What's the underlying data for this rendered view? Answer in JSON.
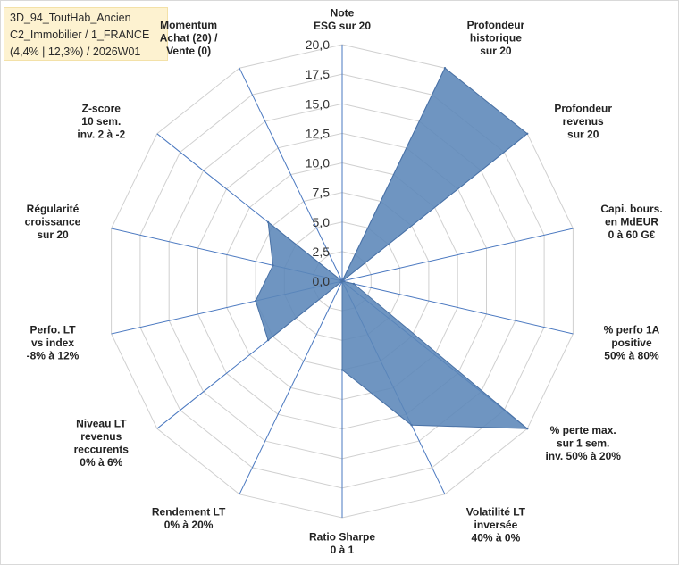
{
  "title": {
    "lines": [
      "3D_94_ToutHab_Ancien",
      "C2_Immobilier / 1_FRANCE",
      "(4,4% | 12,3%) / 2026W01"
    ],
    "background": "#fdf2d0"
  },
  "chart_data": {
    "type": "radar",
    "rlim": [
      0,
      20
    ],
    "rticks": [
      "0,0",
      "2,5",
      "5,0",
      "7,5",
      "10,0",
      "12,5",
      "15,0",
      "17,5",
      "20,0"
    ],
    "grid": true,
    "fill_color": "#5b86b8",
    "grid_color": "#d0d0d0",
    "spoke_color": "#4a78c0",
    "axes": [
      {
        "label": [
          "Note",
          "ESG sur 20"
        ],
        "value": 0
      },
      {
        "label": [
          "Profondeur",
          "historique",
          "sur 20"
        ],
        "value": 20
      },
      {
        "label": [
          "Profondeur",
          "revenus",
          "sur 20"
        ],
        "value": 20
      },
      {
        "label": [
          "Capi. bours.",
          "en MdEUR",
          "0 à 60 G€"
        ],
        "value": 0
      },
      {
        "label": [
          "% perfo 1A",
          "positive",
          "50% à 80%"
        ],
        "value": 1
      },
      {
        "label": [
          "% perte max.",
          "sur 1 sem.",
          "inv. 50% à 20%"
        ],
        "value": 20
      },
      {
        "label": [
          "Volatilité LT",
          "inversée",
          "40% à 0%"
        ],
        "value": 13.5
      },
      {
        "label": [
          "Ratio Sharpe",
          "0 à 1"
        ],
        "value": 7.5
      },
      {
        "label": [
          "Rendement LT",
          "0% à 20%"
        ],
        "value": 0
      },
      {
        "label": [
          "Niveau LT",
          "revenus",
          "reccurents",
          "0% à 6%"
        ],
        "value": 8
      },
      {
        "label": [
          "Perfo. LT",
          "vs index",
          "-8% à 12%"
        ],
        "value": 7.5
      },
      {
        "label": [
          "Régularité",
          "croissance",
          "sur 20"
        ],
        "value": 6
      },
      {
        "label": [
          "Z-score",
          "10 sem.",
          "inv. 2 à -2"
        ],
        "value": 8
      },
      {
        "label": [
          "Momentum",
          "Achat (20) /",
          "Vente (0)"
        ],
        "value": 0
      }
    ]
  }
}
